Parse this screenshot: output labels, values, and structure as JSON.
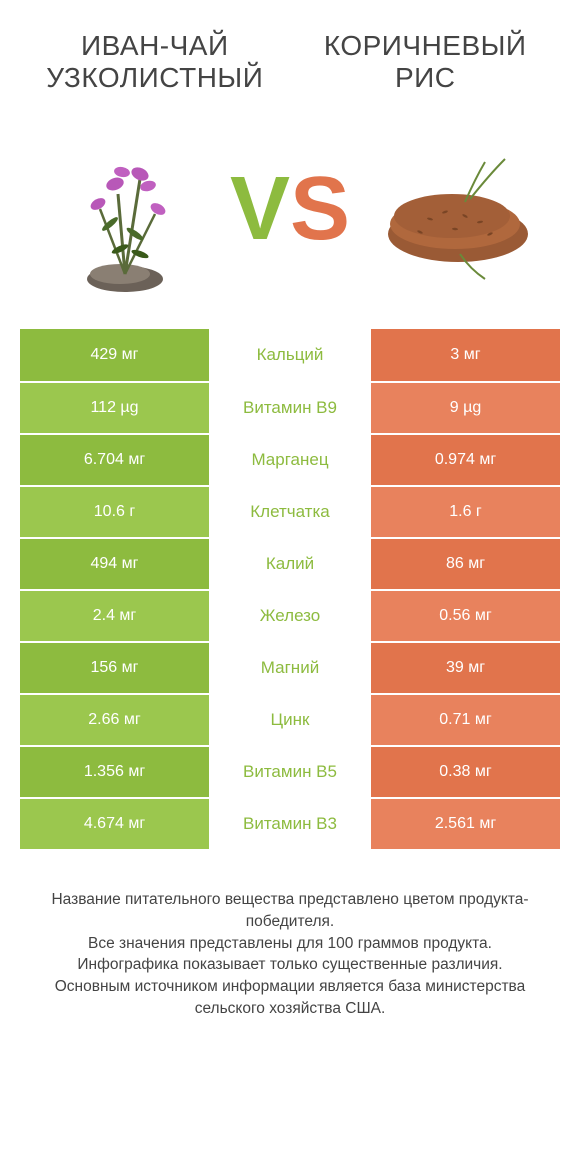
{
  "titles": {
    "left": "Иван-чай узколистный",
    "right": "Коричневый рис"
  },
  "vs": {
    "v": "V",
    "s": "S"
  },
  "colors": {
    "left_bg": "#8dbb3f",
    "right_bg": "#e1744c",
    "mid_text_left": "#8dbb3f",
    "mid_text_right": "#e1744c",
    "row_alt_left": "#9bc74e",
    "row_alt_right": "#e8825d"
  },
  "rows": [
    {
      "left": "429 мг",
      "mid": "Кальций",
      "right": "3 мг",
      "winner": "left"
    },
    {
      "left": "112 µg",
      "mid": "Витамин B9",
      "right": "9 µg",
      "winner": "left"
    },
    {
      "left": "6.704 мг",
      "mid": "Марганец",
      "right": "0.974 мг",
      "winner": "left"
    },
    {
      "left": "10.6 г",
      "mid": "Клетчатка",
      "right": "1.6 г",
      "winner": "left"
    },
    {
      "left": "494 мг",
      "mid": "Калий",
      "right": "86 мг",
      "winner": "left"
    },
    {
      "left": "2.4 мг",
      "mid": "Железо",
      "right": "0.56 мг",
      "winner": "left"
    },
    {
      "left": "156 мг",
      "mid": "Магний",
      "right": "39 мг",
      "winner": "left"
    },
    {
      "left": "2.66 мг",
      "mid": "Цинк",
      "right": "0.71 мг",
      "winner": "left"
    },
    {
      "left": "1.356 мг",
      "mid": "Витамин B5",
      "right": "0.38 мг",
      "winner": "left"
    },
    {
      "left": "4.674 мг",
      "mid": "Витамин B3",
      "right": "2.561 мг",
      "winner": "left"
    }
  ],
  "footer": {
    "line1": "Название питательного вещества представлено цветом продукта-победителя.",
    "line2": "Все значения представлены для 100 граммов продукта.",
    "line3": "Инфографика показывает только существенные различия.",
    "line4": "Основным источником информации является база министерства сельского хозяйства США."
  }
}
